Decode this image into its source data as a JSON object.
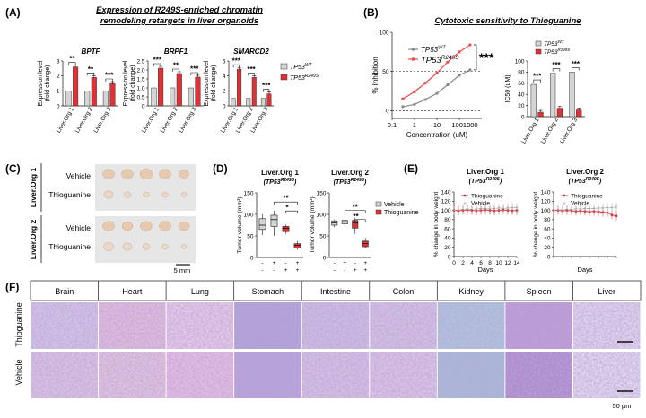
{
  "panels": {
    "A": {
      "letter": "(A)",
      "title_line1": "Expression of R249S-enriched chromatin",
      "title_line2": "remodeling retargets in liver organoids"
    },
    "B": {
      "letter": "(B)",
      "title": "Cytotoxic sensitivity to Thioguanine"
    },
    "C": {
      "letter": "(C)",
      "scale_bar": "5 mm"
    },
    "D": {
      "letter": "(D)"
    },
    "E": {
      "letter": "(E)"
    },
    "F": {
      "letter": "(F)",
      "scale_bar": "50 µm"
    }
  },
  "legend": {
    "wt_label": "TP53",
    "wt_sup": "WT",
    "mut_label": "TP53",
    "mut_sup": "R249S"
  },
  "colors": {
    "wt": "#d4d4d4",
    "mut": "#e03236",
    "line_wt": "#8a8a8a",
    "line_mut": "#e84c4c"
  },
  "organoids": [
    "Liver.Org 1",
    "Liver.Org 2",
    "Liver.Org 3"
  ],
  "chart_data": [
    {
      "id": "A1",
      "type": "bar",
      "title": "BPTF",
      "ylabel": "Expression level (fold change)",
      "categories": [
        "Liver.Org 1",
        "Liver.Org 2",
        "Liver.Org 3"
      ],
      "series": [
        {
          "name": "TP53WT",
          "values": [
            1,
            1,
            1
          ]
        },
        {
          "name": "TP53R249S",
          "values": [
            2.6,
            1.9,
            1.5
          ]
        }
      ],
      "ylim": [
        0,
        3
      ],
      "yticks": [
        0,
        1,
        2,
        3
      ],
      "significance": [
        "**",
        "**",
        "***"
      ]
    },
    {
      "id": "A2",
      "type": "bar",
      "title": "BRPF1",
      "ylabel": "Expression level (fold change)",
      "categories": [
        "Liver.Org 1",
        "Liver.Org 2",
        "Liver.Org 3"
      ],
      "series": [
        {
          "name": "TP53WT",
          "values": [
            1,
            1,
            1
          ]
        },
        {
          "name": "TP53R249S",
          "values": [
            2.1,
            1.8,
            1.6
          ]
        }
      ],
      "ylim": [
        0,
        2.5
      ],
      "yticks": [
        0,
        0.5,
        1.0,
        1.5,
        2.0,
        2.5
      ],
      "ytick_labels": [
        "0",
        "0.5",
        "1.0",
        "1.5",
        "2.0",
        "2.5"
      ],
      "significance": [
        "***",
        "**",
        "***"
      ]
    },
    {
      "id": "A3",
      "type": "bar",
      "title": "SMARCD2",
      "ylabel": "Expression level (fold change)",
      "categories": [
        "Liver.Org 1",
        "Liver.Org 2",
        "Liver.Org 3"
      ],
      "series": [
        {
          "name": "TP53WT",
          "values": [
            1,
            1,
            1
          ]
        },
        {
          "name": "TP53R249S",
          "values": [
            4.9,
            3.8,
            1.6
          ]
        }
      ],
      "ylim": [
        0,
        6
      ],
      "yticks": [
        0,
        2,
        4,
        6
      ],
      "significance": [
        "***",
        "***",
        "***"
      ]
    },
    {
      "id": "B1",
      "type": "line",
      "xlabel": "Concentration (uM)",
      "ylabel": "% Inhibition",
      "xscale": "log",
      "xlim": [
        0.1,
        1000
      ],
      "xtick_labels": [
        "0.1",
        "1",
        "10",
        "1001000"
      ],
      "ylim": [
        -10,
        100
      ],
      "yticks": [
        0,
        50,
        100
      ],
      "series": [
        {
          "name": "TP53WT",
          "x": [
            0.3,
            1,
            3,
            10,
            30,
            100,
            300
          ],
          "y": [
            5,
            8,
            14,
            22,
            33,
            45,
            52
          ]
        },
        {
          "name": "TP53R249S",
          "x": [
            0.3,
            1,
            3,
            10,
            30,
            100,
            300
          ],
          "y": [
            15,
            24,
            35,
            48,
            62,
            75,
            84
          ]
        }
      ],
      "significance": "***",
      "reference_lines": [
        0,
        50
      ]
    },
    {
      "id": "B2",
      "type": "bar",
      "ylabel": "IC50 (uM)",
      "categories": [
        "Liver.Org 1",
        "Liver.Org 2",
        "Liver.Org 3"
      ],
      "series": [
        {
          "name": "TP53WT",
          "values": [
            58,
            78,
            80
          ]
        },
        {
          "name": "TP53R249S",
          "values": [
            8,
            15,
            12
          ]
        }
      ],
      "ylim": [
        0,
        100
      ],
      "yticks": [
        0,
        20,
        40,
        60,
        80,
        100
      ],
      "significance": [
        "***",
        "***",
        "***"
      ]
    },
    {
      "id": "D1",
      "type": "box",
      "title": "Liver.Org 1",
      "subtitle": "TP53",
      "subtitle_sup": "R249S",
      "ylabel": "Tumor volume (mm³)",
      "ylim": [
        0,
        150
      ],
      "yticks": [
        0,
        50,
        100,
        150
      ],
      "xtick_rows": [
        [
          "-",
          "+",
          "-",
          "+"
        ],
        [
          "-",
          "-",
          "+",
          "+"
        ]
      ],
      "boxes": [
        {
          "min": 52,
          "q1": 65,
          "median": 75,
          "q3": 90,
          "max": 100
        },
        {
          "min": 50,
          "q1": 72,
          "median": 88,
          "q3": 98,
          "max": 108
        },
        {
          "min": 55,
          "q1": 60,
          "median": 68,
          "q3": 72,
          "max": 76
        },
        {
          "min": 18,
          "q1": 22,
          "median": 28,
          "q3": 32,
          "max": 38
        }
      ],
      "significance": [
        "**",
        "*"
      ]
    },
    {
      "id": "D2",
      "type": "box",
      "title": "Liver.Org 2",
      "subtitle": "TP53",
      "subtitle_sup": "R249S",
      "ylabel": "Tumor volume (mm³)",
      "ylim": [
        0,
        150
      ],
      "yticks": [
        0,
        50,
        100,
        150
      ],
      "xtick_rows": [
        [
          "-",
          "+",
          "-",
          "+"
        ],
        [
          "-",
          "-",
          "+",
          "+"
        ]
      ],
      "boxes": [
        {
          "min": 70,
          "q1": 75,
          "median": 80,
          "q3": 85,
          "max": 88
        },
        {
          "min": 72,
          "q1": 78,
          "median": 83,
          "q3": 86,
          "max": 88
        },
        {
          "min": 55,
          "q1": 68,
          "median": 80,
          "q3": 86,
          "max": 92
        },
        {
          "min": 22,
          "q1": 25,
          "median": 32,
          "q3": 38,
          "max": 45
        }
      ],
      "significance": [
        "**",
        "**"
      ],
      "legend": [
        "Vehicle",
        "Thioguanine"
      ]
    },
    {
      "id": "E1",
      "type": "line",
      "title": "Liver.Org 1",
      "subtitle": "TP53",
      "subtitle_sup": "R249S",
      "xlabel": "Days",
      "ylabel": "% change in body weight",
      "xlim": [
        0,
        14
      ],
      "xticks": [
        0,
        2,
        4,
        6,
        8,
        10,
        12,
        14
      ],
      "ylim": [
        0,
        140
      ],
      "yticks": [
        0,
        20,
        40,
        60,
        80,
        100,
        120,
        140
      ],
      "series": [
        {
          "name": "Thioguanine",
          "x": [
            0,
            1,
            2,
            3,
            4,
            5,
            6,
            7,
            8,
            9,
            10,
            11,
            12,
            13,
            14
          ],
          "y": [
            100,
            99,
            100,
            101,
            100,
            99,
            100,
            101,
            100,
            99,
            100,
            101,
            100,
            99,
            100
          ]
        },
        {
          "name": "Vehicle",
          "x": [
            0,
            1,
            2,
            3,
            4,
            5,
            6,
            7,
            8,
            9,
            10,
            11,
            12,
            13,
            14
          ],
          "y": [
            100,
            101,
            102,
            103,
            102,
            103,
            104,
            104,
            103,
            104,
            105,
            104,
            105,
            106,
            106
          ]
        }
      ]
    },
    {
      "id": "E2",
      "type": "line",
      "title": "Liver.Org 2",
      "subtitle": "TP53",
      "subtitle_sup": "R249S",
      "xlabel": "Days",
      "ylabel": "% change in body weight",
      "xlim": [
        0,
        14
      ],
      "ylim": [
        0,
        140
      ],
      "yticks": [
        0,
        20,
        40,
        60,
        80,
        100,
        120,
        140
      ],
      "series": [
        {
          "name": "Thioguanine",
          "x": [
            0,
            1,
            2,
            3,
            4,
            5,
            6,
            7,
            8,
            9,
            10,
            11,
            12,
            13,
            14
          ],
          "y": [
            100,
            100,
            99,
            100,
            99,
            98,
            99,
            98,
            97,
            98,
            97,
            96,
            95,
            90,
            88
          ]
        },
        {
          "name": "Vehicle",
          "x": [
            0,
            1,
            2,
            3,
            4,
            5,
            6,
            7,
            8,
            9,
            10,
            11,
            12,
            13,
            14
          ],
          "y": [
            100,
            101,
            101,
            102,
            102,
            103,
            103,
            104,
            104,
            104,
            105,
            105,
            106,
            106,
            107
          ]
        }
      ]
    }
  ],
  "panel_C": {
    "group1": "Liver.Org 1",
    "group2": "Liver.Org 2",
    "rows": [
      "Vehicle",
      "Thioguanine",
      "Vehicle",
      "Thioguanine"
    ]
  },
  "panel_F": {
    "tissues": [
      "Brain",
      "Heart",
      "Lung",
      "Stomach",
      "Intestine",
      "Colon",
      "Kidney",
      "Spleen",
      "Liver"
    ],
    "rows": [
      "Thioguanine",
      "Vehicle"
    ]
  }
}
